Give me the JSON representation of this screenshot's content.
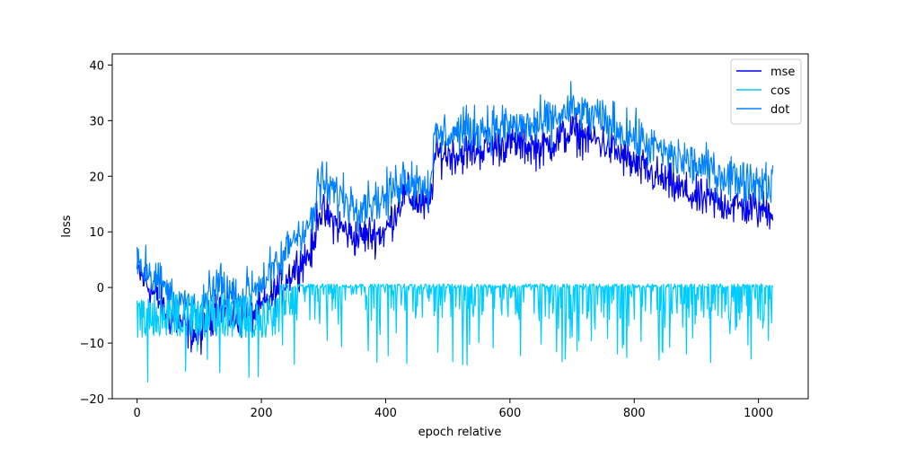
{
  "chart_data": {
    "type": "line",
    "title": "",
    "xlabel": "epoch relative",
    "ylabel": "loss",
    "xlim": [
      -40,
      1080
    ],
    "ylim": [
      -20,
      42
    ],
    "x_ticks": [
      0,
      200,
      400,
      600,
      800,
      1000
    ],
    "y_ticks": [
      -20,
      -10,
      0,
      10,
      20,
      30,
      40
    ],
    "grid": false,
    "legend_position": "upper-right",
    "n_points": 1024,
    "series": [
      {
        "name": "mse",
        "color": "#0000ee",
        "trend_x": [
          0,
          20,
          50,
          100,
          130,
          160,
          200,
          230,
          250,
          285,
          290,
          350,
          400,
          430,
          470,
          480,
          520,
          600,
          650,
          700,
          750,
          800,
          850,
          900,
          950,
          1000,
          1023
        ],
        "trend_y": [
          3,
          0,
          -5,
          -9,
          -3,
          -6,
          -4,
          0,
          3,
          7,
          14,
          9,
          10,
          17,
          14,
          24,
          24,
          26,
          25,
          28,
          26,
          22,
          19,
          16,
          15,
          14,
          14
        ],
        "noise": 2.2
      },
      {
        "name": "cos",
        "color": "#00ccff",
        "baseline": 0.3,
        "range_min": -17,
        "range_max": 0.8
      },
      {
        "name": "dot",
        "color": "#0080ff",
        "trend_x": [
          0,
          20,
          50,
          100,
          130,
          160,
          200,
          230,
          250,
          285,
          290,
          350,
          400,
          430,
          470,
          480,
          520,
          600,
          650,
          700,
          750,
          800,
          850,
          900,
          950,
          1000,
          1023
        ],
        "trend_y": [
          5,
          3,
          -1,
          -5,
          1,
          -2,
          1,
          4,
          9,
          12,
          19,
          15,
          16,
          20,
          18,
          27,
          28,
          29,
          29,
          32,
          30,
          27,
          24,
          22,
          20,
          19,
          19
        ],
        "noise": 2.5
      }
    ]
  }
}
